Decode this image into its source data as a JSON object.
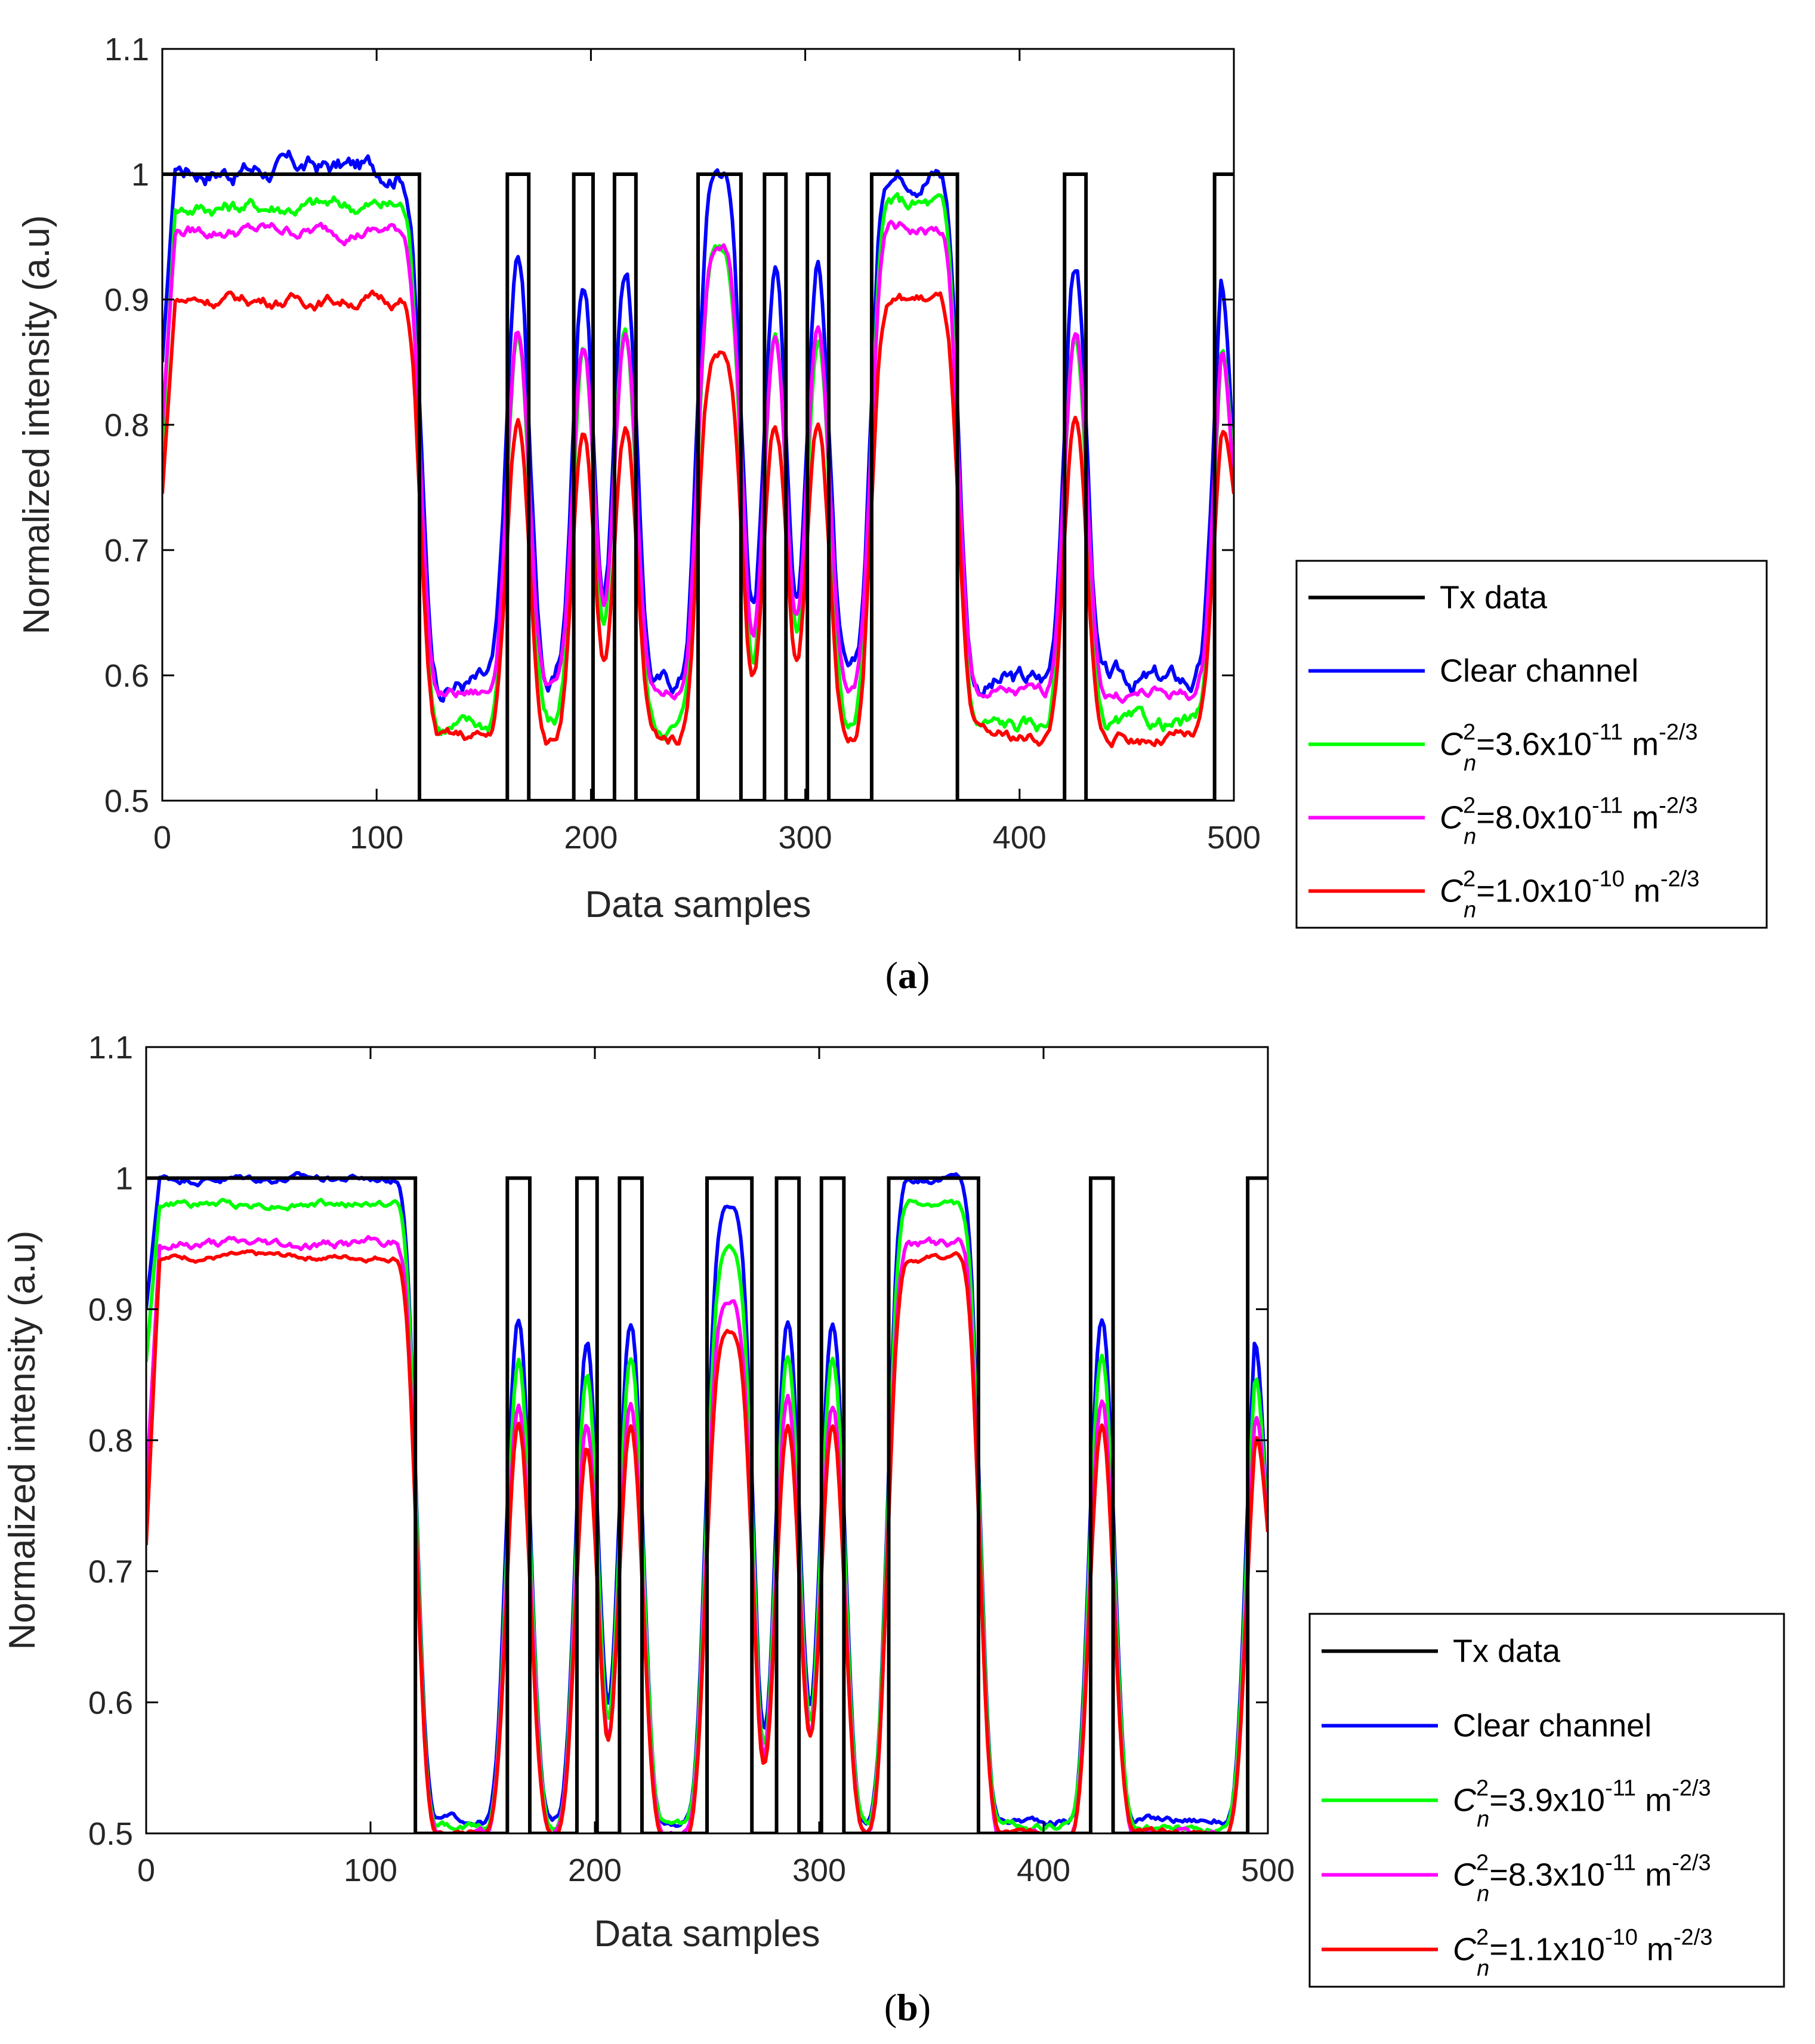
{
  "colors": {
    "tx": "#000000",
    "clear": "#0000ff",
    "series3": "#00ff00",
    "series4": "#ff00ff",
    "series5": "#ff0000",
    "axis_text": "#262626"
  },
  "captions": {
    "a": "a",
    "b": "b"
  },
  "chart_data": [
    {
      "type": "line",
      "panel": "a",
      "xlabel": "Data samples",
      "ylabel": "Normalized intensity (a.u)",
      "xlim": [
        0,
        500
      ],
      "ylim": [
        0.5,
        1.1
      ],
      "xticks": [
        "0",
        "100",
        "200",
        "300",
        "400",
        "500"
      ],
      "yticks": [
        "0.5",
        "0.6",
        "0.7",
        "0.8",
        "0.9",
        "1",
        "1.1"
      ],
      "tx_data": {
        "name": "Tx data",
        "high_intervals": [
          [
            0,
            120
          ],
          [
            161,
            171
          ],
          [
            192,
            201
          ],
          [
            211,
            221
          ],
          [
            250,
            270
          ],
          [
            281,
            291
          ],
          [
            301,
            311
          ],
          [
            331,
            371
          ],
          [
            421,
            431
          ],
          [
            491,
            500
          ]
        ],
        "low": 0.5,
        "high": 1.0
      },
      "legend": [
        {
          "key": "tx",
          "text": "Tx data"
        },
        {
          "key": "clear",
          "text": "Clear channel"
        },
        {
          "key": "series3",
          "prefix": "=3.6x10",
          "exp": "-11",
          "unit": " m",
          "unit_exp": "-2/3"
        },
        {
          "key": "series4",
          "prefix": "=8.0x10",
          "exp": "-11",
          "unit": " m",
          "unit_exp": "-2/3"
        },
        {
          "key": "series5",
          "prefix": "=1.0x10",
          "exp": "-10",
          "unit": " m",
          "unit_exp": "-2/3"
        }
      ],
      "cn_symbol": {
        "base": "C",
        "sup": "2",
        "sub": "n"
      },
      "series": [
        {
          "key": "clear",
          "name": "Clear channel",
          "high_level": 1.005,
          "low_level": 0.595,
          "peak_scale": 1.0,
          "noise": 0.012,
          "start": 0.85,
          "end": 0.77
        },
        {
          "key": "series3",
          "name": "3.6x10^-11",
          "high_level": 0.975,
          "low_level": 0.56,
          "peak_scale": 0.93,
          "noise": 0.009,
          "start": 0.78,
          "end": 0.76
        },
        {
          "key": "series4",
          "name": "8.0x10^-11",
          "high_level": 0.955,
          "low_level": 0.585,
          "peak_scale": 0.96,
          "noise": 0.007,
          "start": 0.8,
          "end": 0.75
        },
        {
          "key": "series5",
          "name": "1.0x10^-10",
          "high_level": 0.9,
          "low_level": 0.55,
          "peak_scale": 0.88,
          "noise": 0.007,
          "start": 0.745,
          "end": 0.745
        }
      ]
    },
    {
      "type": "line",
      "panel": "b",
      "xlabel": "Data samples",
      "ylabel": "Normalized intensity (a.u)",
      "xlim": [
        0,
        500
      ],
      "ylim": [
        0.5,
        1.1
      ],
      "xticks": [
        "0",
        "100",
        "200",
        "300",
        "400",
        "500"
      ],
      "yticks": [
        "0.5",
        "0.6",
        "0.7",
        "0.8",
        "0.9",
        "1",
        "1.1"
      ],
      "tx_data": {
        "name": "Tx data",
        "high_intervals": [
          [
            0,
            120
          ],
          [
            161,
            171
          ],
          [
            192,
            201
          ],
          [
            211,
            221
          ],
          [
            250,
            270
          ],
          [
            281,
            291
          ],
          [
            301,
            311
          ],
          [
            331,
            371
          ],
          [
            421,
            431
          ],
          [
            491,
            500
          ]
        ],
        "low": 0.5,
        "high": 1.0
      },
      "legend": [
        {
          "key": "tx",
          "text": "Tx data"
        },
        {
          "key": "clear",
          "text": "Clear channel"
        },
        {
          "key": "series3",
          "prefix": "=3.9x10",
          "exp": "-11",
          "unit": " m",
          "unit_exp": "-2/3"
        },
        {
          "key": "series4",
          "prefix": "=8.3x10",
          "exp": "-11",
          "unit": " m",
          "unit_exp": "-2/3"
        },
        {
          "key": "series5",
          "prefix": "=1.1x10",
          "exp": "-10",
          "unit": " m",
          "unit_exp": "-2/3"
        }
      ],
      "cn_symbol": {
        "base": "C",
        "sup": "2",
        "sub": "n"
      },
      "series": [
        {
          "key": "clear",
          "name": "Clear channel",
          "high_level": 1.0,
          "low_level": 0.51,
          "peak_scale": 0.96,
          "noise": 0.004,
          "start": 0.9,
          "end": 0.73
        },
        {
          "key": "series3",
          "name": "3.9x10^-11",
          "high_level": 0.98,
          "low_level": 0.505,
          "peak_scale": 0.93,
          "noise": 0.004,
          "start": 0.86,
          "end": 0.73
        },
        {
          "key": "series4",
          "name": "8.3x10^-11",
          "high_level": 0.95,
          "low_level": 0.5,
          "peak_scale": 0.9,
          "noise": 0.005,
          "start": 0.76,
          "end": 0.73
        },
        {
          "key": "series5",
          "name": "1.1x10^-10",
          "high_level": 0.94,
          "low_level": 0.5,
          "peak_scale": 0.87,
          "noise": 0.003,
          "start": 0.72,
          "end": 0.73
        }
      ]
    }
  ]
}
